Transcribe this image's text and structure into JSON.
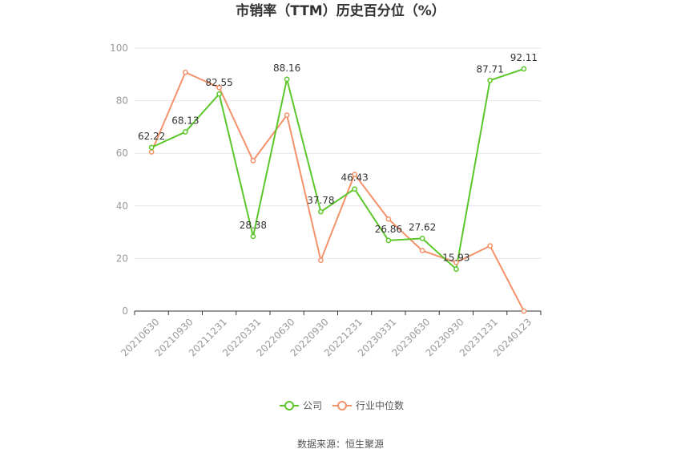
{
  "chart_data": {
    "type": "line",
    "title": "市销率（TTM）历史百分位（%）",
    "categories": [
      "20210630",
      "20210930",
      "20211231",
      "20220331",
      "20220630",
      "20220930",
      "20221231",
      "20230331",
      "20230630",
      "20230930",
      "20231231",
      "20240123"
    ],
    "series": [
      {
        "name": "公司",
        "color": "#5cc72b",
        "values": [
          62.22,
          68.13,
          82.55,
          28.38,
          88.16,
          37.78,
          46.43,
          26.86,
          27.62,
          15.93,
          87.71,
          92.11
        ],
        "labels": [
          "62.22",
          "68.13",
          "82.55",
          "28.38",
          "88.16",
          "37.78",
          "46.43",
          "26.86",
          "27.62",
          "15.93",
          "87.71",
          "92.11"
        ]
      },
      {
        "name": "行业中位数",
        "color": "#f4926a",
        "values": [
          60.5,
          90.8,
          85.0,
          57.2,
          74.5,
          19.3,
          52.0,
          35.0,
          23.0,
          18.5,
          24.8,
          0.0
        ]
      }
    ],
    "ylim": [
      0,
      100
    ],
    "yticks": [
      0,
      20,
      40,
      60,
      80,
      100
    ],
    "grid": true,
    "legend_position": "bottom"
  },
  "source_text": "数据来源：恒生聚源"
}
